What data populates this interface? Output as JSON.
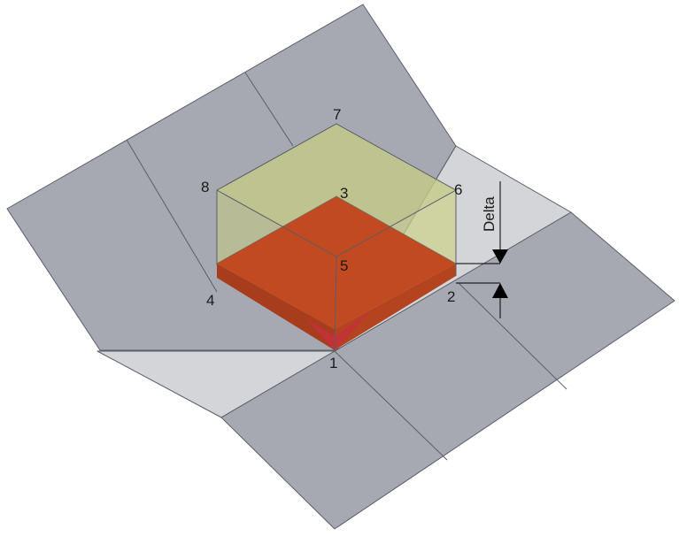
{
  "labels": {
    "node_1": "1",
    "node_2": "2",
    "node_3": "3",
    "node_4": "4",
    "node_5": "5",
    "node_6": "6",
    "node_7": "7",
    "node_8": "8",
    "delta": "Delta"
  },
  "colors": {
    "dark_panel": "#a6a9b1",
    "light_panel": "#d4d5d8",
    "box_top": "#c5cb85",
    "red_block_top": "#c24a20",
    "red_block_side": "#a83d1e",
    "edge": "#5a5e66"
  }
}
